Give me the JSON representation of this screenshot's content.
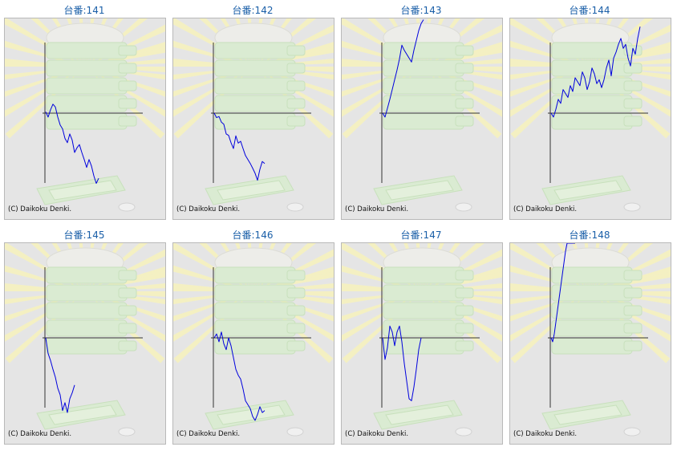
{
  "colors": {
    "title_text": "#1a5fa8",
    "panel_background": "#e5e5e5",
    "panel_border": "#b9b9b9",
    "axis": "#333333",
    "series_line": "#0000dd",
    "rays": "#f6f2bf",
    "art_green": "#d9ecd0",
    "art_green_edge": "#c5e0b8"
  },
  "icons": {
    "background_art": "slot-machine-medal-tray-icon"
  },
  "chart_data": [
    {
      "type": "line",
      "title": "台番:141",
      "copyright": "(C) Daikoku Denki.",
      "xlabel": "",
      "ylabel": "",
      "grid": false,
      "x": [
        0,
        3,
        6,
        9,
        12,
        15,
        18,
        21,
        24,
        27,
        30,
        33,
        36,
        39,
        42,
        45,
        48,
        51,
        54,
        57,
        60,
        63,
        66
      ],
      "y": [
        5,
        -14,
        12,
        32,
        22,
        -14,
        -42,
        -56,
        -90,
        -105,
        -74,
        -96,
        -140,
        -123,
        -112,
        -140,
        -165,
        -193,
        -165,
        -188,
        -223,
        -250,
        -232
      ]
    },
    {
      "type": "line",
      "title": "台番:142",
      "copyright": "(C) Daikoku Denki.",
      "xlabel": "",
      "ylabel": "",
      "grid": false,
      "x": [
        0,
        3,
        6,
        9,
        12,
        15,
        18,
        21,
        24,
        27,
        30,
        33,
        36,
        39,
        42,
        45,
        48,
        51,
        54,
        57,
        60,
        63
      ],
      "y": [
        0,
        -16,
        -12,
        -32,
        -39,
        -74,
        -79,
        -105,
        -126,
        -81,
        -107,
        -100,
        -126,
        -151,
        -165,
        -179,
        -196,
        -214,
        -239,
        -200,
        -172,
        -179
      ]
    },
    {
      "type": "line",
      "title": "台番:143",
      "copyright": "(C) Daikoku Denki.",
      "xlabel": "",
      "ylabel": "",
      "grid": false,
      "x": [
        0,
        3,
        6,
        9,
        12,
        15,
        18,
        21,
        24,
        27,
        30,
        33,
        36,
        39,
        42,
        45,
        48,
        51
      ],
      "y": [
        0,
        -14,
        17,
        49,
        84,
        119,
        154,
        193,
        242,
        224,
        210,
        196,
        182,
        224,
        259,
        294,
        319,
        333
      ]
    },
    {
      "type": "line",
      "title": "台番:144",
      "copyright": "(C) Daikoku Denki.",
      "xlabel": "",
      "ylabel": "",
      "grid": false,
      "x": [
        0,
        3,
        6,
        9,
        12,
        15,
        18,
        21,
        24,
        27,
        30,
        33,
        36,
        39,
        42,
        45,
        48,
        51,
        54,
        57,
        60,
        63,
        66,
        69,
        72,
        75,
        78,
        81,
        84,
        87,
        90,
        93,
        96,
        99,
        102,
        105,
        108,
        111
      ],
      "y": [
        0,
        -14,
        14,
        49,
        35,
        84,
        70,
        56,
        98,
        77,
        126,
        112,
        98,
        147,
        126,
        84,
        112,
        161,
        140,
        105,
        119,
        91,
        119,
        161,
        189,
        133,
        196,
        217,
        245,
        266,
        231,
        245,
        196,
        168,
        231,
        210,
        266,
        308
      ]
    },
    {
      "type": "line",
      "title": "台番:145",
      "copyright": "(C) Daikoku Denki.",
      "xlabel": "",
      "ylabel": "",
      "grid": false,
      "x": [
        0,
        3,
        6,
        9,
        12,
        15,
        18,
        21,
        24,
        27,
        30,
        33,
        36
      ],
      "y": [
        0,
        -56,
        -81,
        -112,
        -140,
        -179,
        -203,
        -259,
        -231,
        -266,
        -217,
        -196,
        -168
      ]
    },
    {
      "type": "line",
      "title": "台番:146",
      "copyright": "(C) Daikoku Denki.",
      "xlabel": "",
      "ylabel": "",
      "grid": false,
      "x": [
        0,
        3,
        6,
        9,
        12,
        15,
        18,
        21,
        24,
        27,
        30,
        33,
        36,
        39,
        42,
        45,
        48,
        51,
        54,
        57,
        60,
        63
      ],
      "y": [
        0,
        14,
        -14,
        21,
        -21,
        -42,
        0,
        -28,
        -70,
        -112,
        -133,
        -147,
        -182,
        -224,
        -238,
        -252,
        -280,
        -294,
        -273,
        -245,
        -266,
        -259
      ]
    },
    {
      "type": "line",
      "title": "台番:147",
      "copyright": "(C) Daikoku Denki.",
      "xlabel": "",
      "ylabel": "",
      "grid": false,
      "x": [
        0,
        3,
        6,
        9,
        12,
        15,
        18,
        21,
        24,
        27,
        30,
        33,
        36,
        39,
        42,
        45,
        48
      ],
      "y": [
        0,
        -77,
        -35,
        42,
        21,
        -28,
        21,
        42,
        -14,
        -91,
        -154,
        -217,
        -224,
        -175,
        -112,
        -42,
        0
      ]
    },
    {
      "type": "line",
      "title": "台番:148",
      "copyright": "(C) Daikoku Denki.",
      "xlabel": "",
      "ylabel": "",
      "grid": false,
      "x": [
        0,
        2,
        4,
        6,
        8,
        10,
        12,
        14,
        16,
        18,
        20,
        22,
        24,
        26,
        28,
        30
      ],
      "y": [
        0,
        -14,
        14,
        56,
        98,
        140,
        182,
        224,
        266,
        308,
        350,
        392,
        434,
        476,
        518,
        560
      ]
    }
  ]
}
